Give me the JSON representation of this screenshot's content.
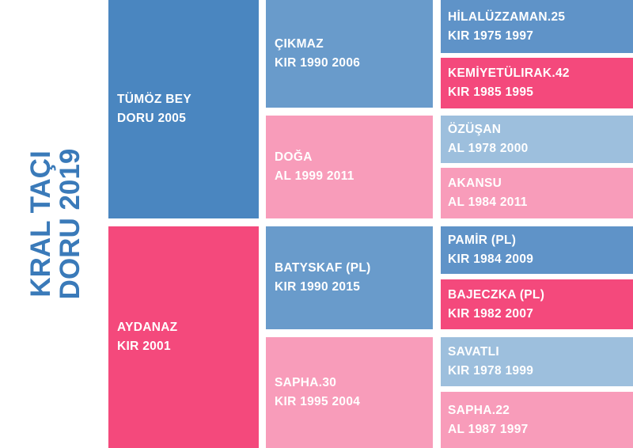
{
  "title": {
    "line1": "KRAL TAÇI",
    "line2": "DORU 2019"
  },
  "sire": {
    "name": "TÜMÖZ BEY",
    "info": "DORU 2005"
  },
  "dam": {
    "name": "AYDANAZ",
    "info": "KIR 2001"
  },
  "grandparents": [
    {
      "name": "ÇIKMAZ",
      "info": "KIR 1990 2006"
    },
    {
      "name": "DOĞA",
      "info": "AL 1999 2011"
    },
    {
      "name": "BATYSKAF (PL)",
      "info": "KIR 1990 2015"
    },
    {
      "name": "SAPHA.30",
      "info": "KIR 1995 2004"
    }
  ],
  "great_grandparents": [
    {
      "name": "HİLALÜZZAMAN.25",
      "info": "KIR 1975 1997"
    },
    {
      "name": "KEMİYETÜLIRAK.42",
      "info": "KIR 1985 1995"
    },
    {
      "name": "ÖZÜŞAN",
      "info": "AL 1978 2000"
    },
    {
      "name": "AKANSU",
      "info": "AL 1984 2011"
    },
    {
      "name": "PAMİR (PL)",
      "info": "KIR 1984 2009"
    },
    {
      "name": "BAJECZKA (PL)",
      "info": "KIR 1982 2007"
    },
    {
      "name": "SAVATLI",
      "info": "KIR 1978 1999"
    },
    {
      "name": "SAPHA.22",
      "info": "AL 1987 1997"
    }
  ]
}
